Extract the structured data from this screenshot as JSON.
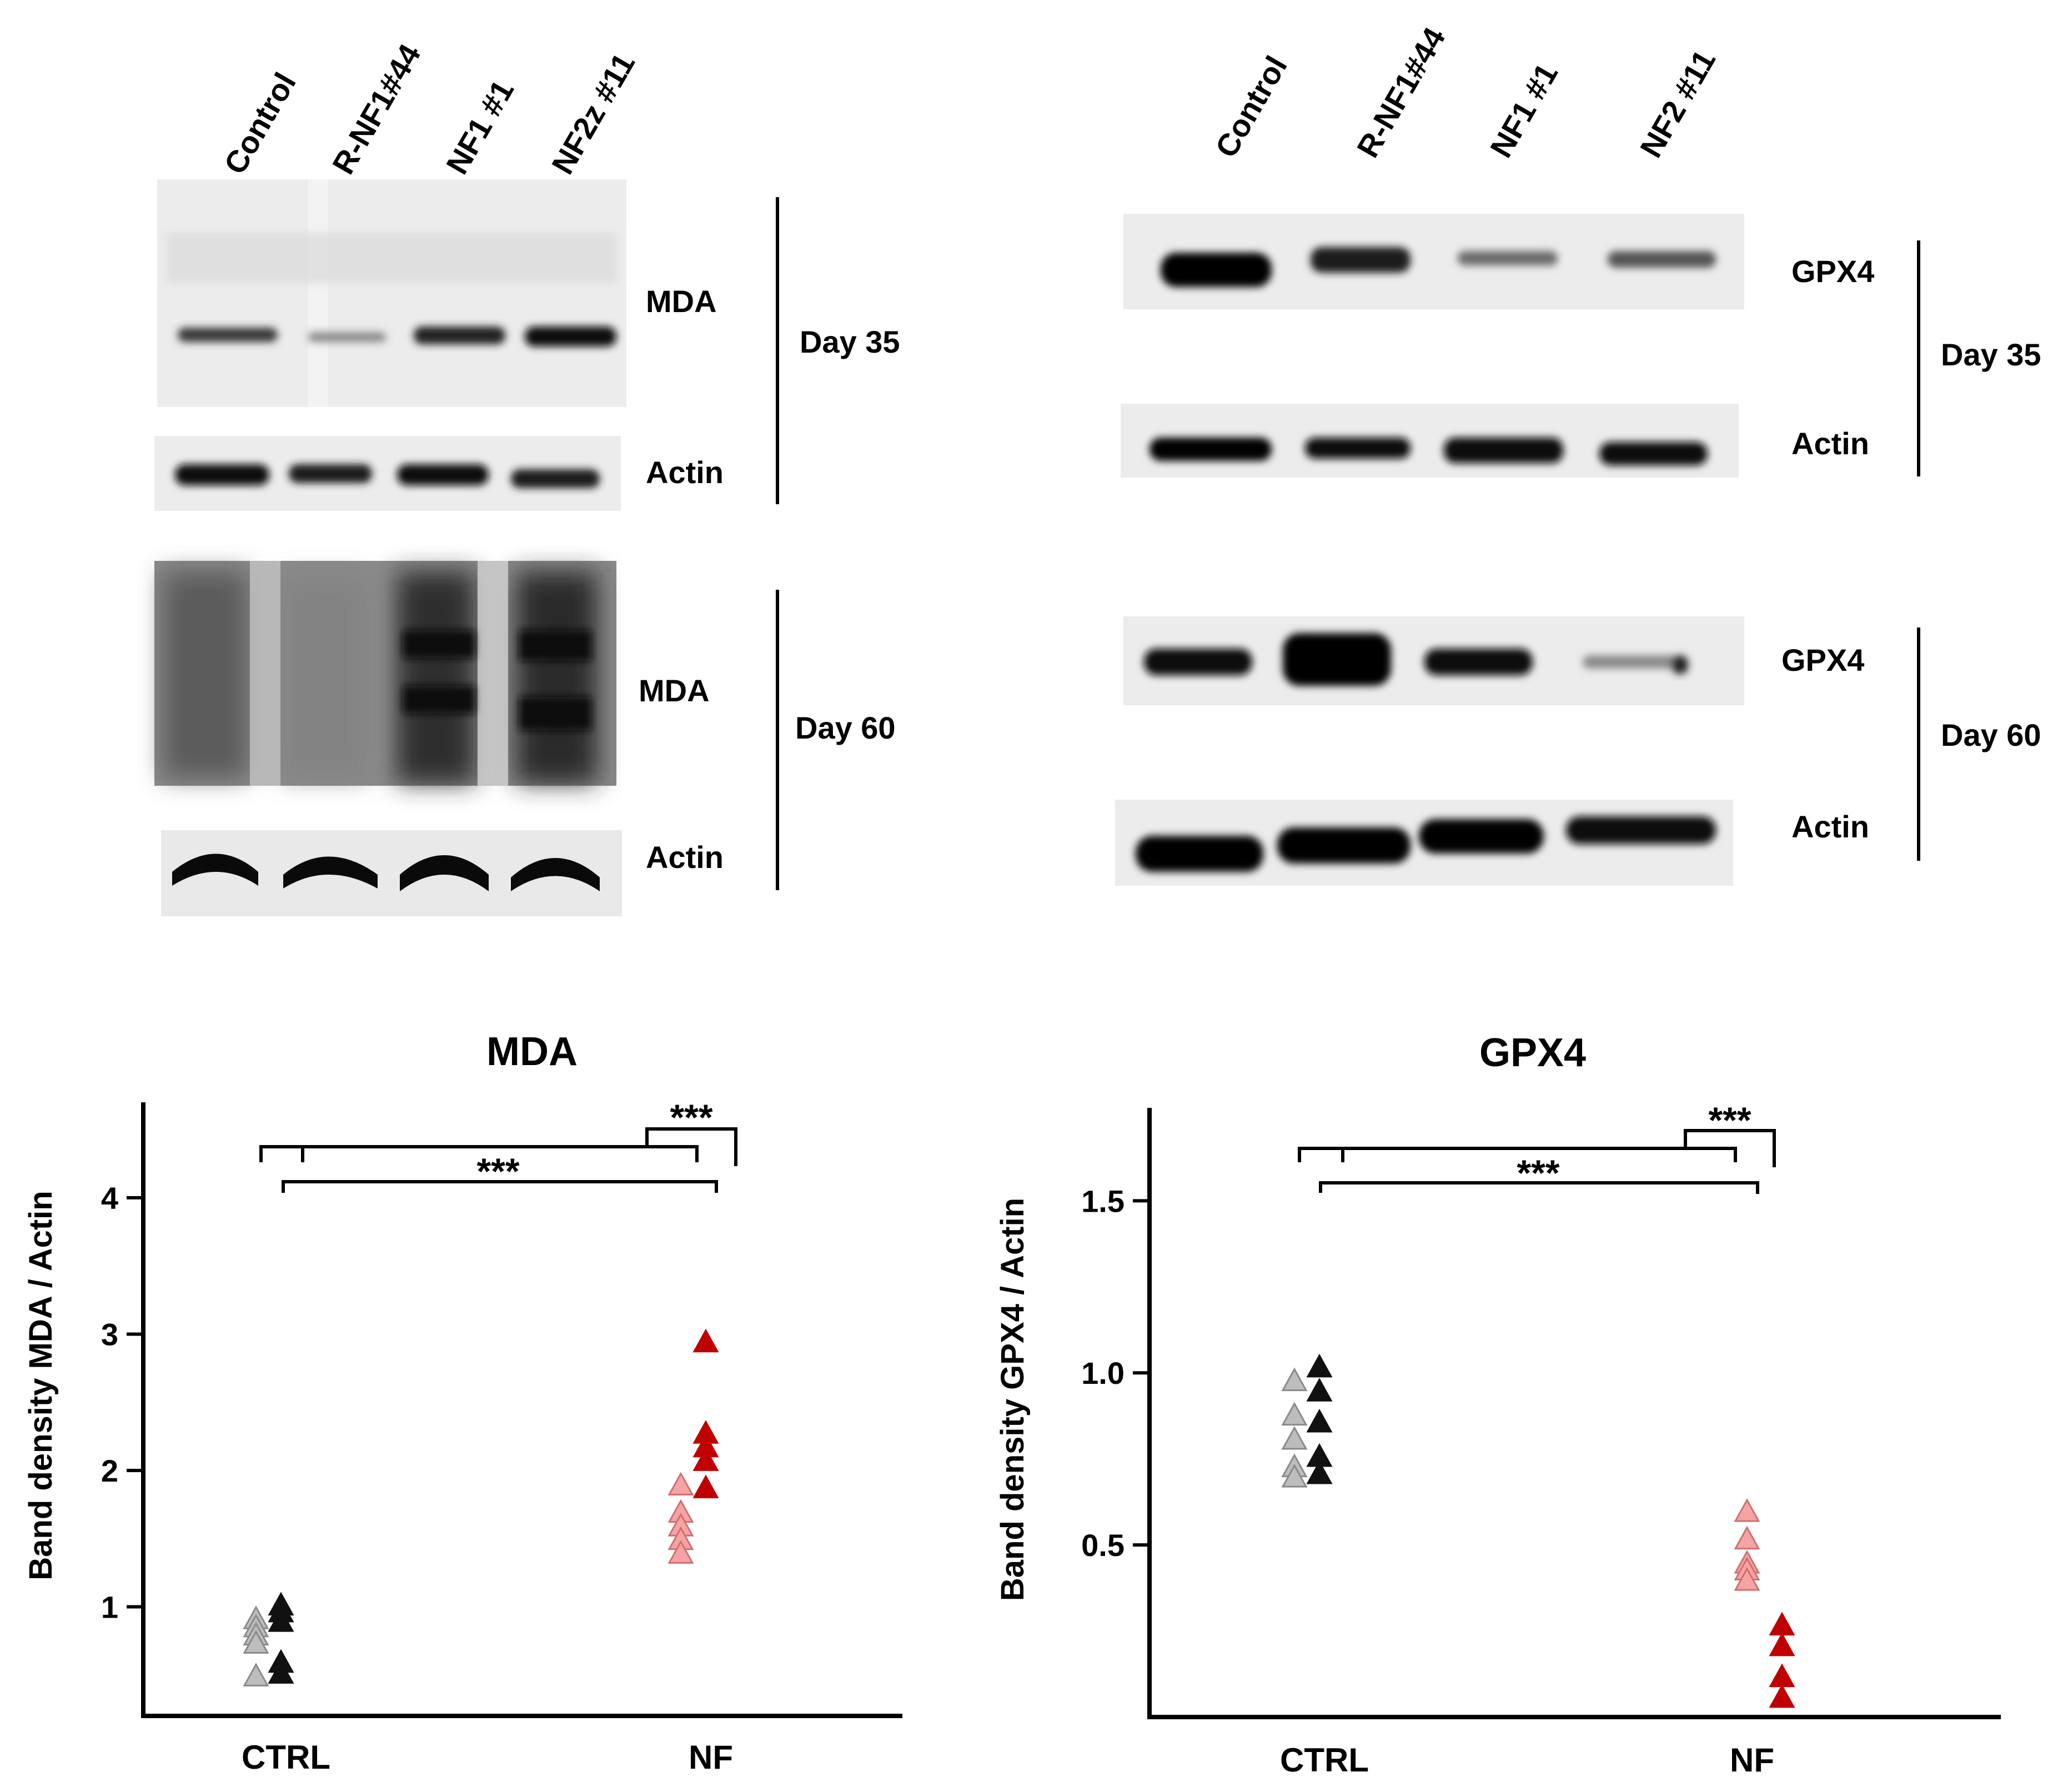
{
  "blots": {
    "left": {
      "lanes": [
        "Control",
        "R-NF1#44",
        "NF1 #1",
        "NF2z #11"
      ],
      "day35": {
        "protein": "MDA",
        "loading": "Actin",
        "day": "Day 35"
      },
      "day60": {
        "protein": "MDA",
        "loading": "Actin",
        "day": "Day 60"
      }
    },
    "right": {
      "lanes": [
        "Control",
        "R-NF1#44",
        "NF1 #1",
        "NF2 #11"
      ],
      "day35": {
        "protein": "GPX4",
        "loading": "Actin",
        "day": "Day 35"
      },
      "day60": {
        "protein": "GPX4",
        "loading": "Actin",
        "day": "Day 60"
      }
    }
  },
  "chart_data": [
    {
      "type": "scatter",
      "title": "MDA",
      "ylabel": "Band density  MDA  /  Actin",
      "categories": [
        "CTRL",
        "NF"
      ],
      "yticks": [
        "1",
        "2",
        "3",
        "4"
      ],
      "ylim": [
        0.2,
        4.7
      ],
      "significance": [
        "***",
        "***"
      ],
      "series": [
        {
          "color": "#bdbdbd",
          "points": [
            [
              -0.3,
              0.92
            ],
            [
              -0.3,
              0.86
            ],
            [
              -0.3,
              0.8
            ],
            [
              -0.3,
              0.74
            ],
            [
              -0.3,
              0.5
            ]
          ]
        },
        {
          "color": "#111111",
          "points": [
            [
              -0.05,
              1.02
            ],
            [
              -0.05,
              0.97
            ],
            [
              -0.05,
              0.9
            ],
            [
              -0.05,
              0.6
            ],
            [
              -0.05,
              0.52
            ]
          ]
        },
        {
          "color": "#f5a3a3",
          "points": [
            [
              -0.3,
              1.9
            ],
            [
              -0.3,
              1.7
            ],
            [
              -0.3,
              1.6
            ],
            [
              -0.3,
              1.5
            ],
            [
              -0.3,
              1.4
            ]
          ]
        },
        {
          "color": "#c00000",
          "points": [
            [
              -0.05,
              2.95
            ],
            [
              -0.05,
              2.28
            ],
            [
              -0.05,
              2.18
            ],
            [
              -0.05,
              2.08
            ],
            [
              -0.05,
              1.88
            ]
          ]
        }
      ]
    },
    {
      "type": "scatter",
      "title": "GPX4",
      "ylabel": "Band density  GPX4  /  Actin",
      "categories": [
        "CTRL",
        "NF"
      ],
      "yticks": [
        "0.5",
        "1.0",
        "1.5"
      ],
      "ylim": [
        0,
        1.77
      ],
      "significance": [
        "***",
        "***"
      ],
      "series": [
        {
          "color": "#bdbdbd",
          "points": [
            [
              -0.3,
              0.98
            ],
            [
              -0.3,
              0.88
            ],
            [
              -0.3,
              0.81
            ],
            [
              -0.3,
              0.73
            ],
            [
              -0.3,
              0.7
            ]
          ]
        },
        {
          "color": "#111111",
          "points": [
            [
              -0.05,
              1.02
            ],
            [
              -0.05,
              0.95
            ],
            [
              -0.05,
              0.86
            ],
            [
              -0.05,
              0.76
            ],
            [
              -0.05,
              0.71
            ]
          ]
        },
        {
          "color": "#f5a3a3",
          "points": [
            [
              -0.05,
              0.6
            ],
            [
              -0.05,
              0.52
            ],
            [
              -0.05,
              0.45
            ],
            [
              -0.05,
              0.43
            ],
            [
              -0.05,
              0.4
            ]
          ]
        },
        {
          "color": "#c00000",
          "points": [
            [
              0.3,
              0.27
            ],
            [
              0.3,
              0.21
            ],
            [
              0.3,
              0.12
            ],
            [
              0.3,
              0.06
            ]
          ]
        }
      ]
    }
  ]
}
